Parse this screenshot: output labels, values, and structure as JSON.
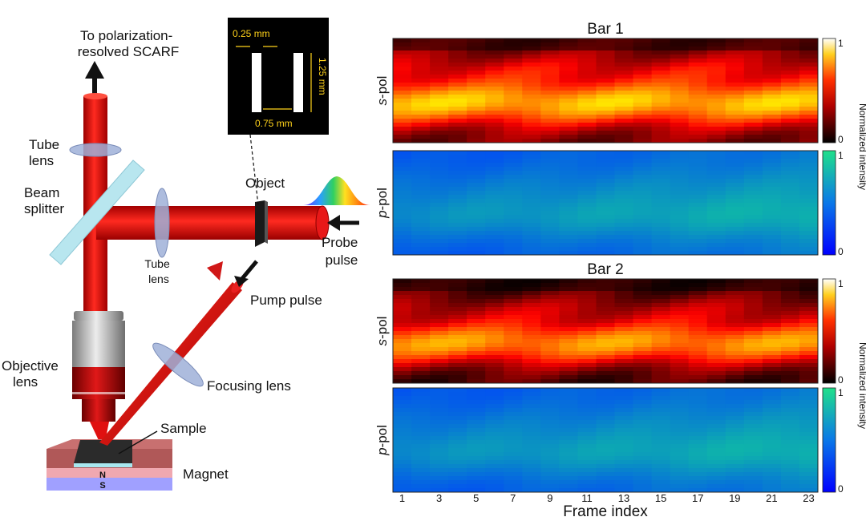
{
  "setup": {
    "top_output": "To polarization-\nresolved SCARF",
    "tube_lens_upper": "Tube\nlens",
    "beam_splitter": "Beam\nsplitter",
    "tube_lens_lower": "Tube\nlens",
    "objective_lens": "Objective\nlens",
    "sample": "Sample",
    "magnet": "Magnet",
    "magnet_n": "N",
    "magnet_s": "S",
    "object": "Object",
    "probe_pulse": "Probe\npulse",
    "pump_pulse": "Pump pulse",
    "focusing_lens": "Focusing lens",
    "inset": {
      "bar_width": "0.25 mm",
      "bar_height": "1.25 mm",
      "bar_gap": "0.75 mm"
    }
  },
  "heatmaps": {
    "xlabel": "Frame index",
    "x_ticks": [
      "1",
      "3",
      "5",
      "7",
      "9",
      "11",
      "13",
      "15",
      "17",
      "19",
      "21",
      "23"
    ],
    "frames": 23,
    "panels": [
      {
        "group_title": "Bar 1",
        "row_label_italic": "s",
        "row_label_rest": "-pol",
        "colormap": "hot"
      },
      {
        "group_title": "",
        "row_label_italic": "p",
        "row_label_rest": "-pol",
        "colormap": "cool"
      },
      {
        "group_title": "Bar 2",
        "row_label_italic": "s",
        "row_label_rest": "-pol",
        "colormap": "hot"
      },
      {
        "group_title": "",
        "row_label_italic": "p",
        "row_label_rest": "-pol",
        "colormap": "cool"
      }
    ],
    "colorbar_max": "1",
    "colorbar_min": "0",
    "colorbar_label": "Normalized intensity"
  },
  "colors": {
    "beam": "#e01010",
    "beam_dark": "#a80000",
    "lens": "#9fb0d8",
    "splitter": "#b8e6ef",
    "magnet_top": "#c06060",
    "magnet_mid": "#f0a8b0",
    "magnet_bottom": "#a0a0ff",
    "inset_bg": "#000000",
    "inset_text": "#ffd21a"
  }
}
